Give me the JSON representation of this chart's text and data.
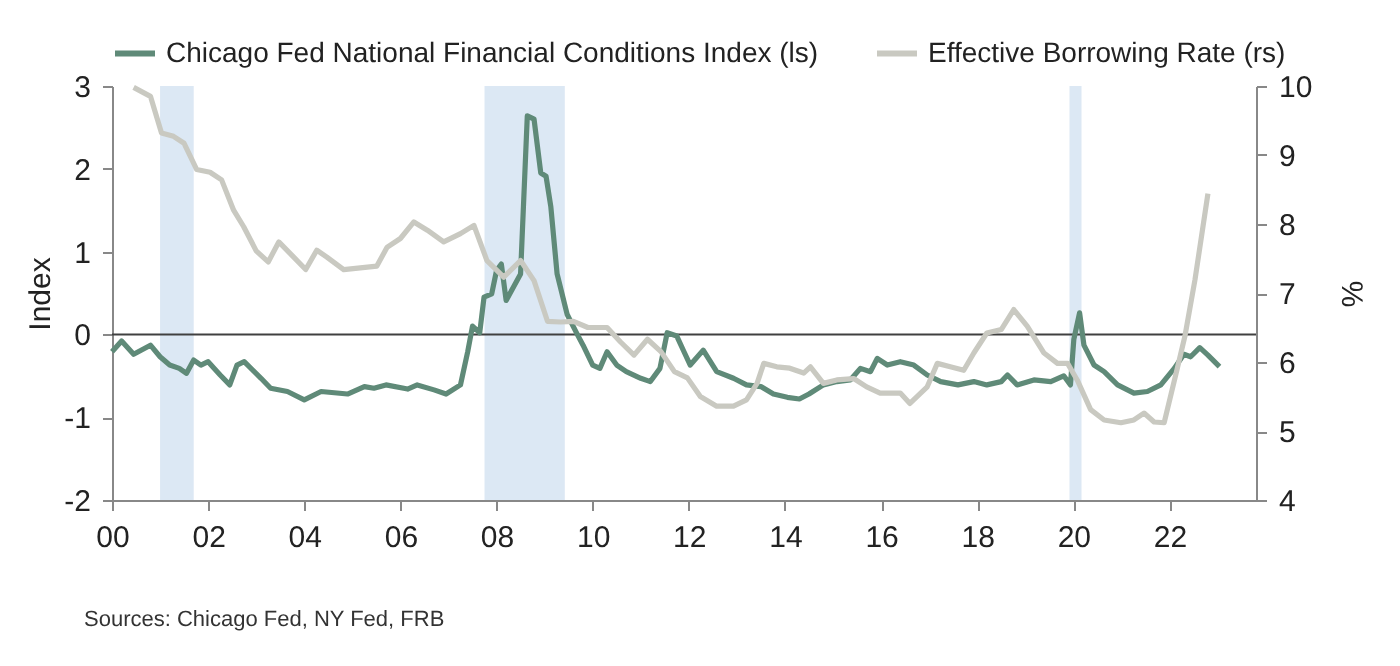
{
  "chart_data": {
    "type": "line",
    "xlabel": null,
    "ylabel": "Index",
    "y2label": "%",
    "annotations": [
      "Sources: Chicago Fed, NY Fed, FRB"
    ],
    "x": [
      2000.0,
      2000.2,
      2000.45,
      2000.8,
      2001.0,
      2001.2,
      2001.4,
      2001.55,
      2001.7,
      2001.85,
      2002.0,
      2002.25,
      2002.45,
      2002.6,
      2002.75,
      2003.1,
      2003.3,
      2003.65,
      2004.0,
      2004.35,
      2004.9,
      2005.25,
      2005.45,
      2005.7,
      2006.15,
      2006.35,
      2006.7,
      2006.95,
      2007.25,
      2007.4,
      2007.5,
      2007.65,
      2007.74,
      2007.9,
      2008.0,
      2008.1,
      2008.2,
      2008.35,
      2008.5,
      2008.64,
      2008.78,
      2008.92,
      2009.03,
      2009.13,
      2009.26,
      2009.47,
      2009.68,
      2009.8,
      2010.0,
      2010.15,
      2010.3,
      2010.5,
      2010.7,
      2011.0,
      2011.2,
      2011.4,
      2011.55,
      2011.75,
      2011.9,
      2012.03,
      2012.3,
      2012.58,
      2012.93,
      2013.2,
      2013.5,
      2013.76,
      2014.05,
      2014.3,
      2014.5,
      2014.8,
      2015.08,
      2015.36,
      2015.57,
      2015.78,
      2015.92,
      2016.13,
      2016.4,
      2016.68,
      2016.96,
      2017.24,
      2017.6,
      2017.93,
      2018.2,
      2018.5,
      2018.63,
      2018.83,
      2019.18,
      2019.53,
      2019.8,
      2019.94,
      2020.01,
      2020.13,
      2020.22,
      2020.43,
      2020.64,
      2020.92,
      2021.26,
      2021.54,
      2021.82,
      2022.1,
      2022.3,
      2022.44,
      2022.63,
      2022.8,
      2023.04
    ],
    "series": [
      {
        "name": "Chicago Fed National Financial Conditions Index (ls)",
        "color": "#5f8a78",
        "values": [
          -0.21,
          -0.08,
          -0.24,
          -0.13,
          -0.27,
          -0.37,
          -0.41,
          -0.47,
          -0.31,
          -0.37,
          -0.33,
          -0.49,
          -0.61,
          -0.37,
          -0.33,
          -0.53,
          -0.65,
          -0.69,
          -0.79,
          -0.69,
          -0.72,
          -0.63,
          -0.65,
          -0.61,
          -0.66,
          -0.61,
          -0.67,
          -0.72,
          -0.61,
          -0.21,
          0.1,
          0.02,
          0.45,
          0.49,
          0.77,
          0.85,
          0.41,
          0.57,
          0.73,
          2.64,
          2.6,
          1.95,
          1.91,
          1.54,
          0.73,
          0.24,
          0.0,
          -0.13,
          -0.37,
          -0.41,
          -0.21,
          -0.37,
          -0.45,
          -0.53,
          -0.57,
          -0.41,
          0.02,
          -0.02,
          -0.21,
          -0.37,
          -0.19,
          -0.45,
          -0.53,
          -0.61,
          -0.63,
          -0.72,
          -0.76,
          -0.78,
          -0.72,
          -0.61,
          -0.57,
          -0.55,
          -0.41,
          -0.45,
          -0.29,
          -0.37,
          -0.33,
          -0.37,
          -0.49,
          -0.57,
          -0.61,
          -0.57,
          -0.61,
          -0.57,
          -0.49,
          -0.61,
          -0.55,
          -0.57,
          -0.5,
          -0.61,
          -0.06,
          0.26,
          -0.13,
          -0.37,
          -0.45,
          -0.61,
          -0.71,
          -0.69,
          -0.61,
          -0.41,
          -0.24,
          -0.27,
          -0.16,
          -0.25,
          -0.39
        ]
      },
      {
        "name": "Effective Borrowing Rate (rs)",
        "color": "#c9c9c1",
        "axis": "y2",
        "x": [
          2000.45,
          2000.8,
          2001.03,
          2001.28,
          2001.5,
          2001.76,
          2002.04,
          2002.28,
          2002.53,
          2002.74,
          2003.0,
          2003.25,
          2003.47,
          2003.78,
          2004.03,
          2004.26,
          2004.47,
          2004.82,
          2005.51,
          2005.72,
          2006.0,
          2006.28,
          2006.56,
          2006.9,
          2007.25,
          2007.53,
          2007.8,
          2008.15,
          2008.5,
          2008.78,
          2009.06,
          2009.33,
          2009.6,
          2009.9,
          2010.3,
          2010.58,
          2010.86,
          2011.14,
          2011.42,
          2011.7,
          2011.97,
          2012.24,
          2012.58,
          2012.93,
          2013.2,
          2013.42,
          2013.56,
          2013.83,
          2014.1,
          2014.39,
          2014.53,
          2014.8,
          2015.08,
          2015.43,
          2015.7,
          2015.98,
          2016.4,
          2016.6,
          2016.96,
          2017.17,
          2017.44,
          2017.72,
          2017.93,
          2018.2,
          2018.5,
          2018.76,
          2019.04,
          2019.39,
          2019.67,
          2019.88,
          2020.08,
          2020.36,
          2020.64,
          2020.99,
          2021.26,
          2021.47,
          2021.68,
          2021.89,
          2022.17,
          2022.32,
          2022.53,
          2022.8
        ],
        "values": [
          9.98,
          9.85,
          9.32,
          9.27,
          9.17,
          8.79,
          8.75,
          8.64,
          8.2,
          7.96,
          7.61,
          7.45,
          7.74,
          7.52,
          7.34,
          7.62,
          7.52,
          7.34,
          7.39,
          7.66,
          7.79,
          8.03,
          7.91,
          7.74,
          7.86,
          7.98,
          7.47,
          7.23,
          7.47,
          7.18,
          6.59,
          6.58,
          6.59,
          6.5,
          6.5,
          6.29,
          6.1,
          6.33,
          6.15,
          5.86,
          5.77,
          5.5,
          5.36,
          5.36,
          5.45,
          5.69,
          5.98,
          5.93,
          5.91,
          5.84,
          5.93,
          5.69,
          5.74,
          5.76,
          5.64,
          5.55,
          5.55,
          5.4,
          5.64,
          5.98,
          5.93,
          5.88,
          6.13,
          6.42,
          6.47,
          6.76,
          6.52,
          6.13,
          5.98,
          5.98,
          5.74,
          5.31,
          5.16,
          5.12,
          5.16,
          5.26,
          5.13,
          5.12,
          5.93,
          6.37,
          7.19,
          8.44
        ]
      }
    ],
    "xlim": [
      2000,
      2023.8
    ],
    "xticks": [
      {
        "value": 2000,
        "label": "00"
      },
      {
        "value": 2002,
        "label": "02"
      },
      {
        "value": 2004,
        "label": "04"
      },
      {
        "value": 2006,
        "label": "06"
      },
      {
        "value": 2008,
        "label": "08"
      },
      {
        "value": 2010,
        "label": "10"
      },
      {
        "value": 2012,
        "label": "12"
      },
      {
        "value": 2014,
        "label": "14"
      },
      {
        "value": 2016,
        "label": "16"
      },
      {
        "value": 2018,
        "label": "18"
      },
      {
        "value": 2020,
        "label": "20"
      },
      {
        "value": 2022,
        "label": "22"
      }
    ],
    "ylim": [
      -2,
      3
    ],
    "yticks": [
      -2,
      -1,
      0,
      1,
      2,
      3
    ],
    "y2lim": [
      4,
      10
    ],
    "y2ticks": [
      4,
      5,
      6,
      7,
      8,
      9,
      10
    ],
    "ref_lines": [
      {
        "axis": "y",
        "value": 0,
        "color": "#404040"
      }
    ],
    "bands": [
      {
        "axis": "x",
        "from": 2001.0,
        "to": 2001.7,
        "color": "#dce8f4"
      },
      {
        "axis": "x",
        "from": 2007.75,
        "to": 2009.42,
        "color": "#dce8f4"
      },
      {
        "axis": "x",
        "from": 2019.92,
        "to": 2020.17,
        "color": "#dce8f4"
      }
    ],
    "legend": "top",
    "grid": false,
    "marker": "none",
    "line_style": "solid"
  }
}
